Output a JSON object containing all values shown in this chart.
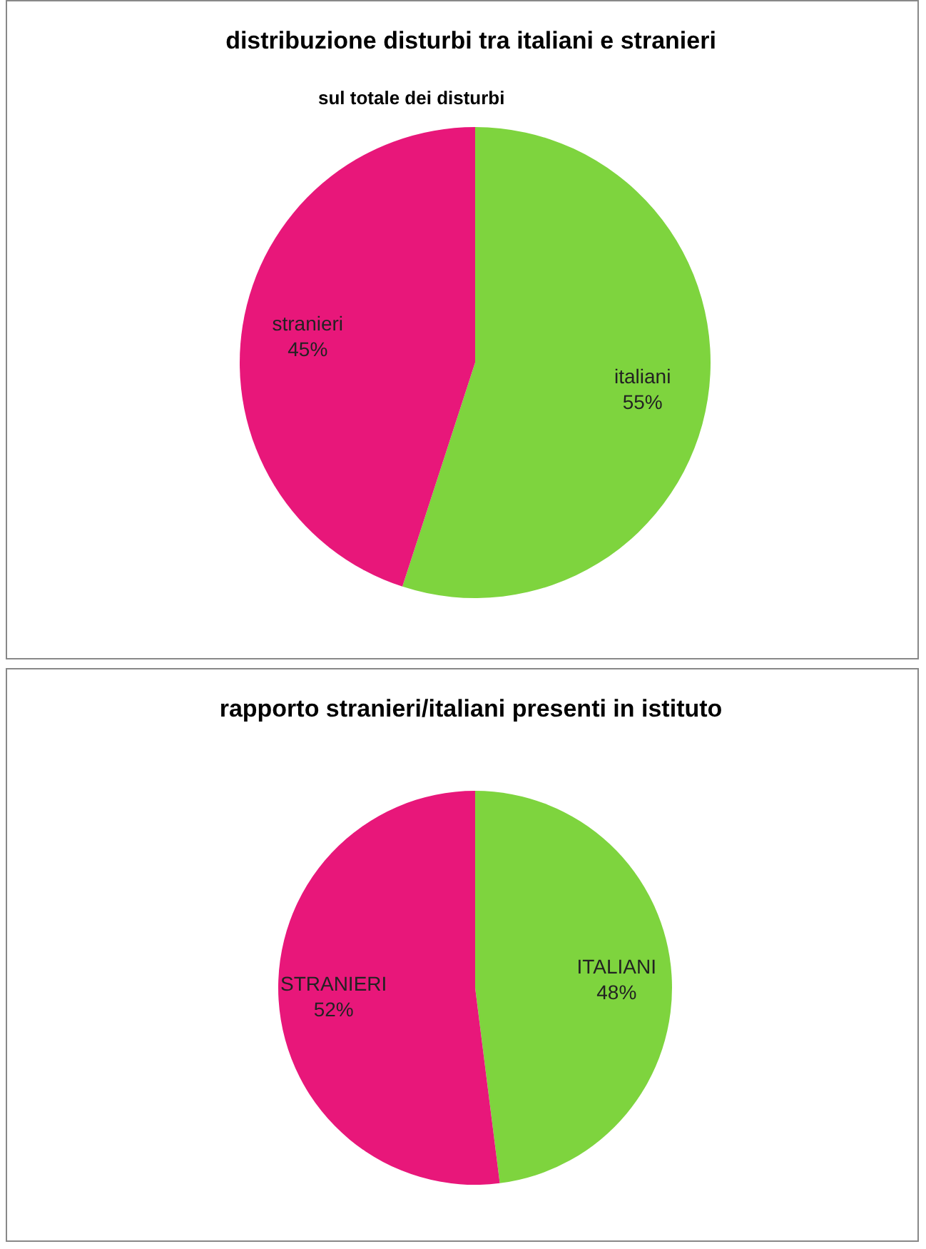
{
  "chart_data": [
    {
      "type": "pie",
      "title": "distribuzione disturbi tra italiani e stranieri",
      "subtitle": "sul totale dei disturbi",
      "categories": [
        "italiani",
        "stranieri"
      ],
      "values": [
        55,
        45
      ],
      "value_labels": [
        "55%",
        "45%"
      ],
      "colors": [
        "#7ed43e",
        "#e8177a"
      ]
    },
    {
      "type": "pie",
      "title": "rapporto stranieri/italiani presenti in istituto",
      "categories": [
        "ITALIANI",
        "STRANIERI"
      ],
      "values": [
        48,
        52
      ],
      "value_labels": [
        "48%",
        "52%"
      ],
      "colors": [
        "#7ed43e",
        "#e8177a"
      ]
    }
  ]
}
